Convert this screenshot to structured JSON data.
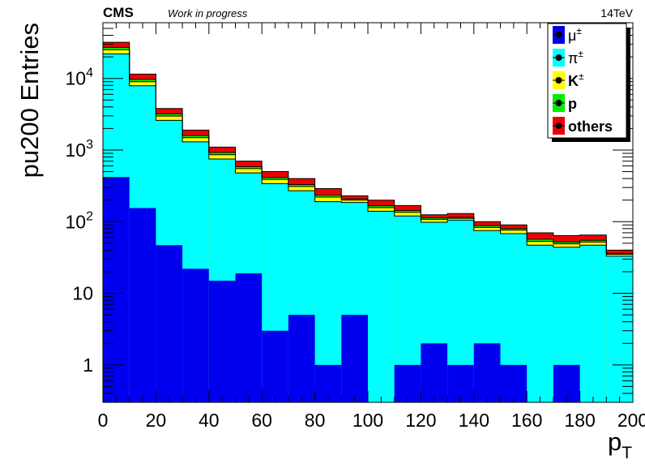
{
  "header": {
    "experiment": "CMS",
    "status": "Work in progress",
    "energy": "14TeV"
  },
  "chart_data": {
    "type": "bar",
    "stacked": true,
    "ylabel": "pu200 Entries",
    "xlabel": "p",
    "xlabel_sub": "T",
    "xlim": [
      0,
      200
    ],
    "ylim": [
      0.3,
      60000
    ],
    "yscale": "log",
    "grid": false,
    "legend_position": "top-right",
    "x_ticks": [
      0,
      20,
      40,
      60,
      80,
      100,
      120,
      140,
      160,
      180,
      200
    ],
    "y_ticks": [
      {
        "value": 1,
        "base": "1",
        "exp": ""
      },
      {
        "value": 10,
        "base": "10",
        "exp": ""
      },
      {
        "value": 100,
        "base": "10",
        "exp": "2"
      },
      {
        "value": 1000,
        "base": "10",
        "exp": "3"
      },
      {
        "value": 10000,
        "base": "10",
        "exp": "4"
      }
    ],
    "bin_edges": [
      0,
      10,
      20,
      30,
      40,
      50,
      60,
      70,
      80,
      90,
      100,
      110,
      120,
      130,
      140,
      150,
      160,
      170,
      180,
      190,
      200
    ],
    "series": [
      {
        "name": "μ",
        "sup": "±",
        "color": "#0000ee",
        "marker": "#000000",
        "values": [
          420,
          155,
          47,
          22,
          15,
          19,
          3,
          5,
          1,
          5,
          0,
          1,
          2,
          1,
          2,
          1,
          0,
          1,
          0,
          0
        ]
      },
      {
        "name": "π",
        "sup": "±",
        "color": "#00ffff",
        "marker": "#000000",
        "values": [
          21580,
          7745,
          2553,
          1278,
          735,
          461,
          337,
          265,
          189,
          180,
          140,
          119,
          96,
          104,
          73,
          67,
          47,
          43,
          47,
          33
        ]
      },
      {
        "name": "K",
        "sup": "±",
        "color": "#ffff00",
        "marker": "#000000",
        "values": [
          3200,
          1100,
          380,
          190,
          110,
          70,
          50,
          40,
          30,
          15,
          17,
          15,
          10,
          6,
          8,
          8,
          6,
          5,
          5,
          2
        ]
      },
      {
        "name": "p",
        "sup": "",
        "color": "#00ee00",
        "marker": "#000000",
        "values": [
          2000,
          700,
          220,
          110,
          65,
          35,
          25,
          20,
          15,
          8,
          10,
          8,
          5,
          4,
          5,
          4,
          4,
          3,
          3,
          1
        ]
      },
      {
        "name": "others",
        "sup": "",
        "color": "#ee0000",
        "marker": "#000000",
        "values": [
          4800,
          1800,
          600,
          300,
          175,
          115,
          85,
          70,
          55,
          22,
          33,
          25,
          12,
          15,
          12,
          10,
          13,
          12,
          10,
          4
        ]
      }
    ]
  }
}
